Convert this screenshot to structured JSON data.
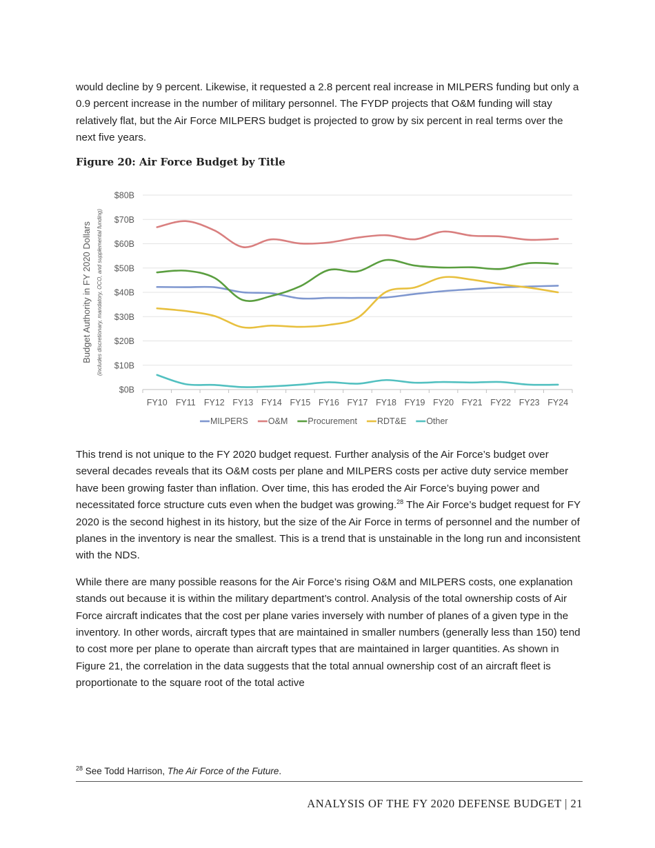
{
  "paragraphs": {
    "p1": "would decline by 9 percent. Likewise, it requested a 2.8 percent real increase in MILPERS funding but only a 0.9 percent increase in the number of military personnel. The FYDP projects that O&M funding will stay relatively flat, but the Air Force MILPERS budget is projected to grow by six percent in real terms over the next five years.",
    "p2_a": "This trend is not unique to the FY 2020 budget request. Further analysis of the Air Force’s budget over several decades reveals that its O&M costs per plane and MILPERS costs per active duty service member have been growing faster than inflation. Over time, this has eroded the Air Force’s buying power and necessitated force structure cuts even when the budget was growing.",
    "p2_ref": "28",
    "p2_b": " The Air Force’s budget request for FY 2020 is the second highest in its history, but the size of the Air Force in terms of personnel and the number of planes in the inventory is near the smallest. This is a trend that is unstainable in the long run and inconsistent with the NDS.",
    "p3": "While there are many possible reasons for the Air Force’s rising O&M and MILPERS costs, one explanation stands out because it is within the military department’s control. Analysis of the total ownership costs of Air Force aircraft indicates that the cost per plane varies inversely with number of planes of a given type in the inventory. In other words, aircraft types that are maintained in smaller numbers (generally less than 150) tend to cost more per plane to operate than aircraft types that are maintained in larger quantities. As shown in Figure 21, the correlation in the data suggests that the total annual ownership cost of an aircraft fleet is proportionate to the square root of the total active"
  },
  "figure_title": "Figure 20: Air Force Budget by Title",
  "footnote": {
    "number": "28",
    "text": " See Todd Harrison, ",
    "italic": "The Air Force of the Future",
    "end": "."
  },
  "footer": "ANALYSIS OF THE FY 2020 DEFENSE BUDGET | 21",
  "chart_data": {
    "type": "line",
    "ylabel": "Budget Authority in FY 2020 Dollars",
    "ylabel_sub": "(includes discretionary, mandatory, OCO, and supplemental funding)",
    "categories": [
      "FY10",
      "FY11",
      "FY12",
      "FY13",
      "FY14",
      "FY15",
      "FY16",
      "FY17",
      "FY18",
      "FY19",
      "FY20",
      "FY21",
      "FY22",
      "FY23",
      "FY24"
    ],
    "yticks": [
      "$0B",
      "$10B",
      "$20B",
      "$30B",
      "$40B",
      "$50B",
      "$60B",
      "$70B",
      "$80B"
    ],
    "ylim": [
      0,
      80
    ],
    "grid": true,
    "legend": "bottom",
    "series": [
      {
        "name": "MILPERS",
        "color": "#7f97cf",
        "values": [
          42.2,
          42.1,
          42.1,
          40.0,
          39.6,
          37.5,
          37.7,
          37.7,
          37.9,
          39.3,
          40.5,
          41.3,
          42.0,
          42.4,
          42.7
        ]
      },
      {
        "name": "O&M",
        "color": "#d97f7f",
        "values": [
          66.8,
          69.3,
          65.5,
          58.6,
          61.8,
          60.1,
          60.5,
          62.5,
          63.5,
          61.8,
          65.0,
          63.3,
          63.0,
          61.6,
          62.0
        ]
      },
      {
        "name": "Procurement",
        "color": "#5a9e3f",
        "values": [
          48.2,
          48.9,
          46.0,
          36.8,
          38.5,
          42.5,
          49.2,
          48.6,
          53.3,
          51.0,
          50.2,
          50.3,
          49.6,
          52.0,
          51.7
        ]
      },
      {
        "name": "RDT&E",
        "color": "#e8c03f",
        "values": [
          33.4,
          32.3,
          30.3,
          25.6,
          26.3,
          25.8,
          26.6,
          29.5,
          40.2,
          42.0,
          46.2,
          45.2,
          43.3,
          41.9,
          40.0
        ]
      },
      {
        "name": "Other",
        "color": "#52c0c0",
        "values": [
          6.0,
          2.2,
          1.9,
          1.0,
          1.3,
          2.0,
          3.0,
          2.4,
          3.9,
          2.8,
          3.1,
          2.9,
          3.1,
          2.0,
          2.0
        ]
      }
    ]
  }
}
